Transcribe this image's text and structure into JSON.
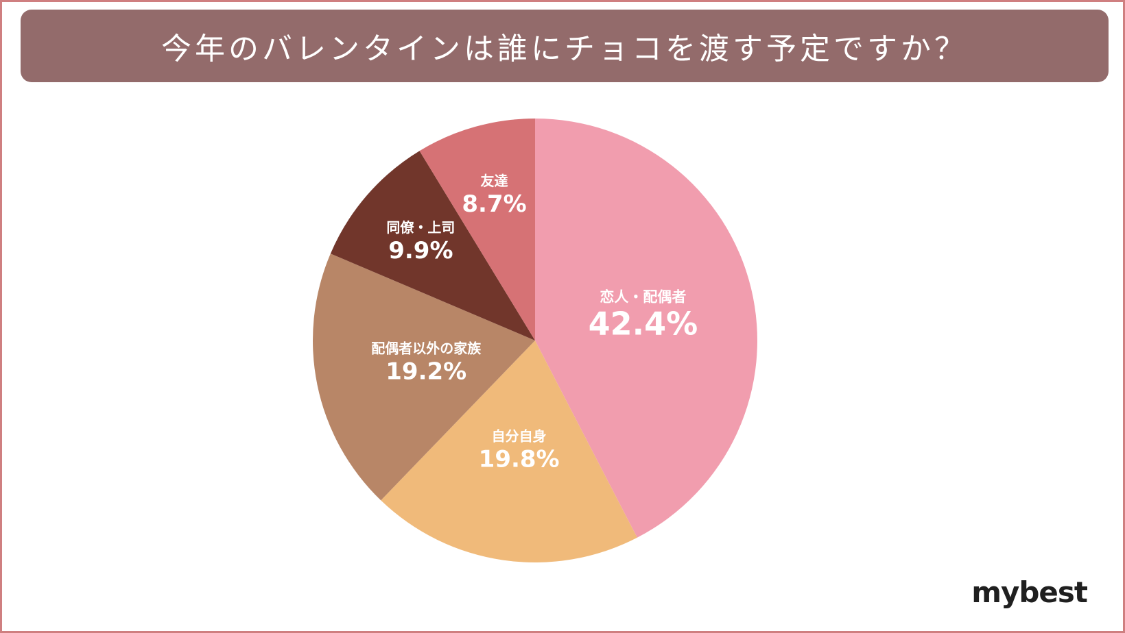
{
  "title": "今年のバレンタインは誰にチョコを渡す予定ですか？",
  "logo_text": "mybest",
  "chart_data": {
    "type": "pie",
    "title": "今年のバレンタインは誰にチョコを渡す予定ですか？",
    "slices": [
      {
        "label": "恋人・配偶者",
        "value": 42.4,
        "value_label": "42.4%",
        "color": "#f19dae"
      },
      {
        "label": "自分自身",
        "value": 19.8,
        "value_label": "19.8%",
        "color": "#f0ba7a"
      },
      {
        "label": "配偶者以外の家族",
        "value": 19.2,
        "value_label": "19.2%",
        "color": "#b88667"
      },
      {
        "label": "同僚・上司",
        "value": 9.9,
        "value_label": "9.9%",
        "color": "#71362b"
      },
      {
        "label": "友達",
        "value": 8.7,
        "value_label": "8.7%",
        "color": "#d67275"
      }
    ],
    "start": "12 o'clock",
    "direction": "clockwise",
    "legend": "none"
  }
}
